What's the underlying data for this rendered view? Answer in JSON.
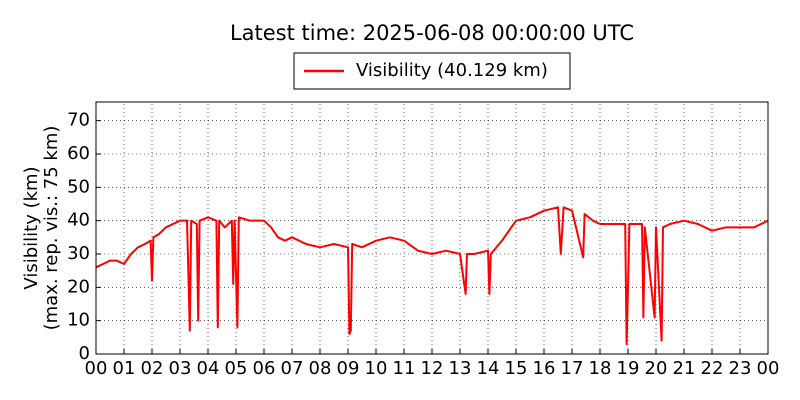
{
  "chart_data": {
    "type": "line",
    "title": "Latest time: 2025-06-08 00:00:00 UTC",
    "y_label": [
      "Visibility (km)",
      "(max. rep. vis.: 75 km)"
    ],
    "x": [
      0,
      0.25,
      0.5,
      0.75,
      1,
      1.25,
      1.5,
      1.75,
      1.95,
      2.0,
      2.05,
      2.25,
      2.5,
      2.75,
      3,
      3.25,
      3.3,
      3.35,
      3.4,
      3.6,
      3.65,
      3.7,
      4,
      4.3,
      4.35,
      4.4,
      4.6,
      4.85,
      4.9,
      4.95,
      5.05,
      5.1,
      5.5,
      6,
      6.25,
      6.5,
      6.75,
      7,
      7.5,
      8,
      8.5,
      9,
      9.05,
      9.1,
      9.15,
      9.5,
      10,
      10.5,
      11,
      11.5,
      12,
      12.5,
      13,
      13.2,
      13.25,
      13.5,
      14,
      14.05,
      14.1,
      14.5,
      14.75,
      15,
      15.5,
      16,
      16.5,
      16.6,
      16.7,
      17,
      17.4,
      17.45,
      17.75,
      18,
      18.5,
      18.9,
      18.95,
      19,
      19.05,
      19.5,
      19.55,
      19.6,
      19.95,
      20,
      20.2,
      20.25,
      20.5,
      21,
      21.5,
      22,
      22.5,
      23,
      23.5,
      24
    ],
    "series": [
      {
        "name": "Visibility (40.129 km)",
        "color": "#ff0000",
        "values": [
          26,
          27,
          28,
          28,
          27,
          30,
          32,
          33,
          34,
          22,
          35,
          36,
          38,
          39,
          40,
          40,
          24,
          7,
          40,
          39,
          10,
          40,
          41,
          40,
          8,
          40,
          38,
          40,
          21,
          40,
          8,
          41,
          40,
          40,
          38,
          35,
          34,
          35,
          33,
          32,
          33,
          32,
          6,
          7,
          33,
          32,
          34,
          35,
          34,
          31,
          30,
          31,
          30,
          18,
          30,
          30,
          31,
          18,
          30,
          34,
          37,
          40,
          41,
          43,
          44,
          30,
          44,
          43,
          29,
          42,
          40,
          39,
          39,
          39,
          3,
          20,
          39,
          39,
          11,
          38,
          11,
          38,
          4,
          38,
          39,
          40,
          39,
          37,
          38,
          38,
          38,
          40
        ]
      }
    ],
    "xlim": [
      0,
      24
    ],
    "ylim": [
      0,
      75
    ],
    "xticks": [
      {
        "value": 0,
        "label": "00"
      },
      {
        "value": 1,
        "label": "01"
      },
      {
        "value": 2,
        "label": "02"
      },
      {
        "value": 3,
        "label": "03"
      },
      {
        "value": 4,
        "label": "04"
      },
      {
        "value": 5,
        "label": "05"
      },
      {
        "value": 6,
        "label": "06"
      },
      {
        "value": 7,
        "label": "07"
      },
      {
        "value": 8,
        "label": "08"
      },
      {
        "value": 9,
        "label": "09"
      },
      {
        "value": 10,
        "label": "10"
      },
      {
        "value": 11,
        "label": "11"
      },
      {
        "value": 12,
        "label": "12"
      },
      {
        "value": 13,
        "label": "13"
      },
      {
        "value": 14,
        "label": "14"
      },
      {
        "value": 15,
        "label": "15"
      },
      {
        "value": 16,
        "label": "16"
      },
      {
        "value": 17,
        "label": "17"
      },
      {
        "value": 18,
        "label": "18"
      },
      {
        "value": 19,
        "label": "19"
      },
      {
        "value": 20,
        "label": "20"
      },
      {
        "value": 21,
        "label": "21"
      },
      {
        "value": 22,
        "label": "22"
      },
      {
        "value": 23,
        "label": "23"
      },
      {
        "value": 24,
        "label": "00"
      }
    ],
    "yticks": [
      0,
      10,
      20,
      30,
      40,
      50,
      60,
      70
    ],
    "grid": true,
    "legend": "top"
  }
}
